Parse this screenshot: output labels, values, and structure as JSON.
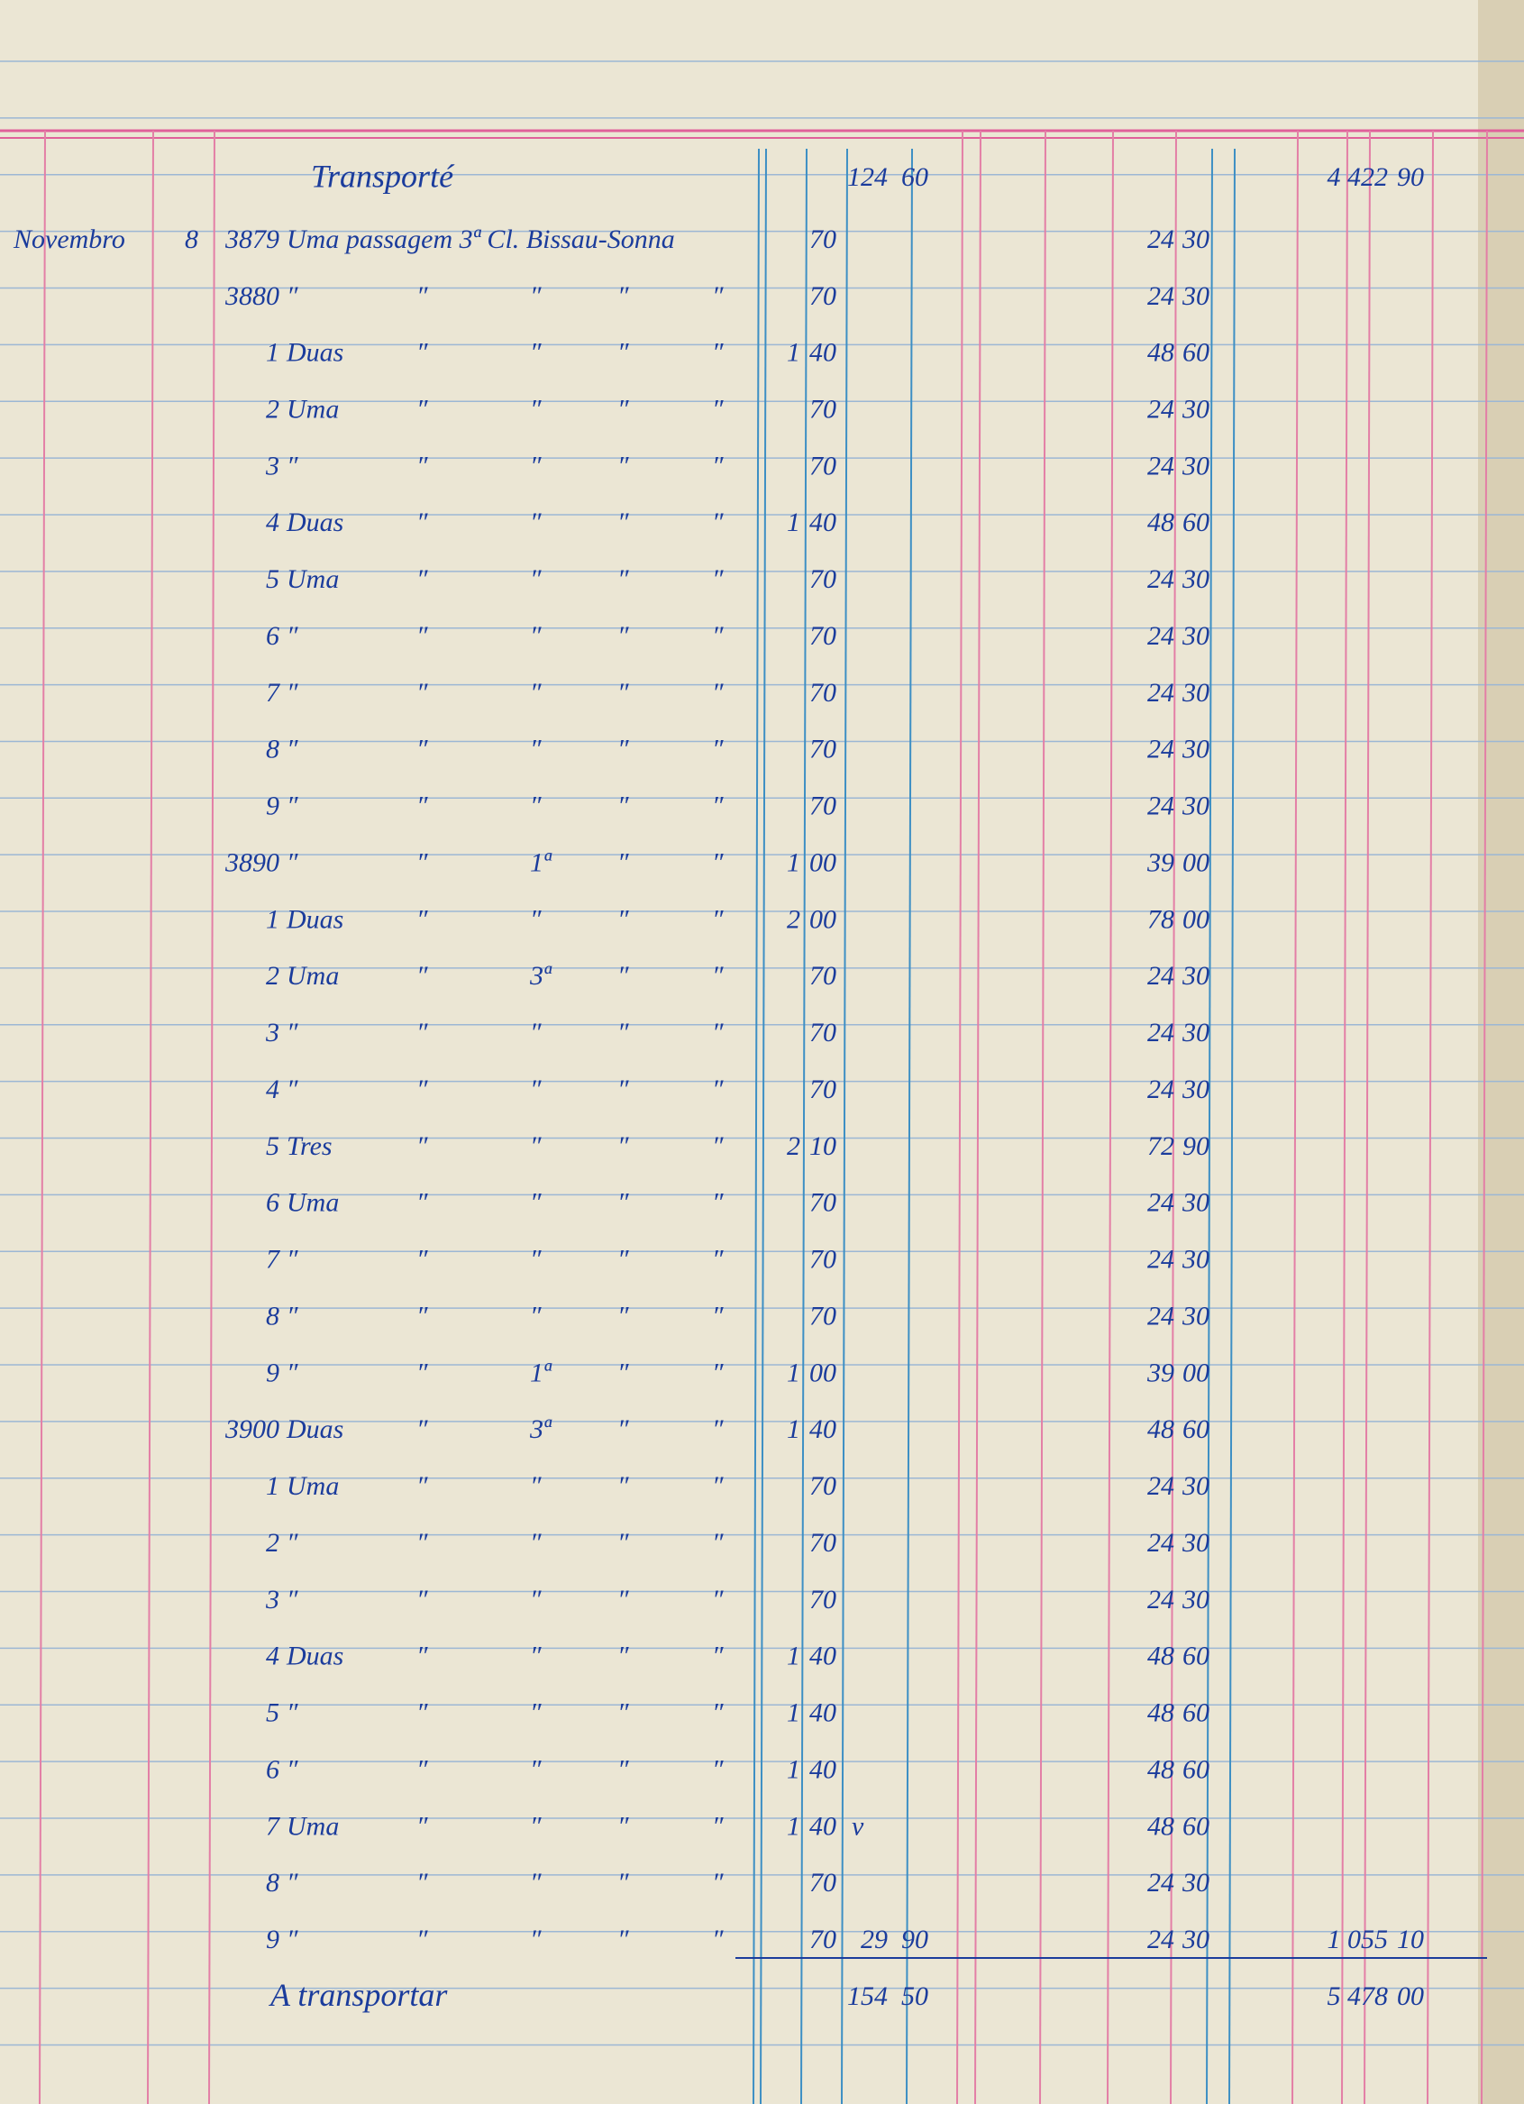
{
  "ledger": {
    "header": {
      "label": "Transporté",
      "subtotal_int": "124",
      "subtotal_cents": "60",
      "total_int": "4 422",
      "total_cents": "90"
    },
    "rows": [
      {
        "month": "Novembro",
        "day": "8",
        "number": "3879",
        "description": "Uma passagem 3ª Cl. Bissau-Sonna",
        "qty_cents": "70",
        "amount_int": "24",
        "amount_cents": "30"
      },
      {
        "number": "3880",
        "cells": [
          "″",
          "″",
          "″",
          "″",
          "″"
        ],
        "qty_cents": "70",
        "amount_int": "24",
        "amount_cents": "30"
      },
      {
        "number": "1",
        "cells": [
          "Duas",
          "″",
          "″",
          "″",
          "″"
        ],
        "qty_int": "1",
        "qty_cents": "40",
        "amount_int": "48",
        "amount_cents": "60"
      },
      {
        "number": "2",
        "cells": [
          "Uma",
          "″",
          "″",
          "″",
          "″"
        ],
        "qty_cents": "70",
        "amount_int": "24",
        "amount_cents": "30"
      },
      {
        "number": "3",
        "cells": [
          "″",
          "″",
          "″",
          "″",
          "″"
        ],
        "qty_cents": "70",
        "amount_int": "24",
        "amount_cents": "30"
      },
      {
        "number": "4",
        "cells": [
          "Duas",
          "″",
          "″",
          "″",
          "″"
        ],
        "qty_int": "1",
        "qty_cents": "40",
        "amount_int": "48",
        "amount_cents": "60"
      },
      {
        "number": "5",
        "cells": [
          "Uma",
          "″",
          "″",
          "″",
          "″"
        ],
        "qty_cents": "70",
        "amount_int": "24",
        "amount_cents": "30"
      },
      {
        "number": "6",
        "cells": [
          "″",
          "″",
          "″",
          "″",
          "″"
        ],
        "qty_cents": "70",
        "amount_int": "24",
        "amount_cents": "30"
      },
      {
        "number": "7",
        "cells": [
          "″",
          "″",
          "″",
          "″",
          "″"
        ],
        "qty_cents": "70",
        "amount_int": "24",
        "amount_cents": "30"
      },
      {
        "number": "8",
        "cells": [
          "″",
          "″",
          "″",
          "″",
          "″"
        ],
        "qty_cents": "70",
        "amount_int": "24",
        "amount_cents": "30"
      },
      {
        "number": "9",
        "cells": [
          "″",
          "″",
          "″",
          "″",
          "″"
        ],
        "qty_cents": "70",
        "amount_int": "24",
        "amount_cents": "30"
      },
      {
        "number": "3890",
        "cells": [
          "″",
          "″",
          "1ª",
          "″",
          "″"
        ],
        "qty_int": "1",
        "qty_cents": "00",
        "amount_int": "39",
        "amount_cents": "00"
      },
      {
        "number": "1",
        "cells": [
          "Duas",
          "″",
          "″",
          "″",
          "″"
        ],
        "qty_int": "2",
        "qty_cents": "00",
        "amount_int": "78",
        "amount_cents": "00"
      },
      {
        "number": "2",
        "cells": [
          "Uma",
          "″",
          "3ª",
          "″",
          "″"
        ],
        "qty_cents": "70",
        "amount_int": "24",
        "amount_cents": "30"
      },
      {
        "number": "3",
        "cells": [
          "″",
          "″",
          "″",
          "″",
          "″"
        ],
        "qty_cents": "70",
        "amount_int": "24",
        "amount_cents": "30"
      },
      {
        "number": "4",
        "cells": [
          "″",
          "″",
          "″",
          "″",
          "″"
        ],
        "qty_cents": "70",
        "amount_int": "24",
        "amount_cents": "30"
      },
      {
        "number": "5",
        "cells": [
          "Tres",
          "″",
          "″",
          "″",
          "″"
        ],
        "qty_int": "2",
        "qty_cents": "10",
        "amount_int": "72",
        "amount_cents": "90"
      },
      {
        "number": "6",
        "cells": [
          "Uma",
          "″",
          "″",
          "″",
          "″"
        ],
        "qty_cents": "70",
        "amount_int": "24",
        "amount_cents": "30"
      },
      {
        "number": "7",
        "cells": [
          "″",
          "″",
          "″",
          "″",
          "″"
        ],
        "qty_cents": "70",
        "amount_int": "24",
        "amount_cents": "30"
      },
      {
        "number": "8",
        "cells": [
          "″",
          "″",
          "″",
          "″",
          "″"
        ],
        "qty_cents": "70",
        "amount_int": "24",
        "amount_cents": "30"
      },
      {
        "number": "9",
        "cells": [
          "″",
          "″",
          "1ª",
          "″",
          "″"
        ],
        "qty_int": "1",
        "qty_cents": "00",
        "amount_int": "39",
        "amount_cents": "00"
      },
      {
        "number": "3900",
        "cells": [
          "Duas",
          "″",
          "3ª",
          "″",
          "″"
        ],
        "qty_int": "1",
        "qty_cents": "40",
        "amount_int": "48",
        "amount_cents": "60"
      },
      {
        "number": "1",
        "cells": [
          "Uma",
          "″",
          "″",
          "″",
          "″"
        ],
        "qty_cents": "70",
        "amount_int": "24",
        "amount_cents": "30"
      },
      {
        "number": "2",
        "cells": [
          "″",
          "″",
          "″",
          "″",
          "″"
        ],
        "qty_cents": "70",
        "amount_int": "24",
        "amount_cents": "30"
      },
      {
        "number": "3",
        "cells": [
          "″",
          "″",
          "″",
          "″",
          "″"
        ],
        "qty_cents": "70",
        "amount_int": "24",
        "amount_cents": "30"
      },
      {
        "number": "4",
        "cells": [
          "Duas",
          "″",
          "″",
          "″",
          "″"
        ],
        "qty_int": "1",
        "qty_cents": "40",
        "amount_int": "48",
        "amount_cents": "60"
      },
      {
        "number": "5",
        "cells": [
          "″",
          "″",
          "″",
          "″",
          "″"
        ],
        "qty_int": "1",
        "qty_cents": "40",
        "amount_int": "48",
        "amount_cents": "60"
      },
      {
        "number": "6",
        "cells": [
          "″",
          "″",
          "″",
          "″",
          "″"
        ],
        "qty_int": "1",
        "qty_cents": "40",
        "amount_int": "48",
        "amount_cents": "60"
      },
      {
        "number": "7",
        "cells": [
          "Uma",
          "″",
          "″",
          "″",
          "″"
        ],
        "qty_int": "1",
        "qty_cents": "40",
        "check": "v",
        "amount_int": "48",
        "amount_cents": "60"
      },
      {
        "number": "8",
        "cells": [
          "″",
          "″",
          "″",
          "″",
          "″"
        ],
        "qty_cents": "70",
        "amount_int": "24",
        "amount_cents": "30"
      },
      {
        "number": "9",
        "cells": [
          "″",
          "″",
          "″",
          "″",
          "″"
        ],
        "qty_cents": "70",
        "subtotal_int": "29",
        "subtotal_cents": "90",
        "amount_int": "24",
        "amount_cents": "30",
        "total_int": "1 055",
        "total_cents": "10"
      }
    ],
    "footer": {
      "label": "A transportar",
      "subtotal_int": "154",
      "subtotal_cents": "50",
      "total_int": "5 478",
      "total_cents": "00"
    }
  }
}
